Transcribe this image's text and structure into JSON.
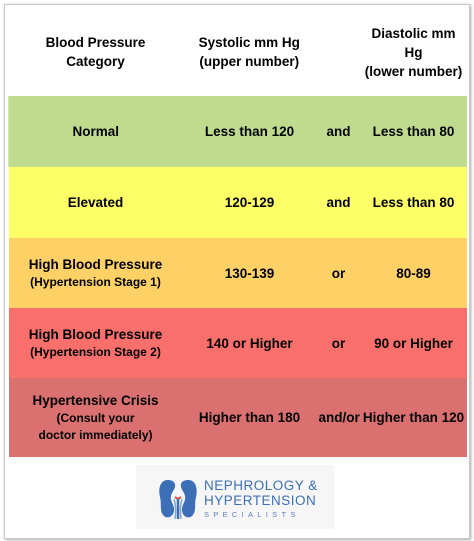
{
  "table": {
    "headers": {
      "category_line1": "Blood Pressure",
      "category_line2": "Category",
      "systolic_line1": "Systolic mm Hg",
      "systolic_line2": "(upper number)",
      "connector": "",
      "diastolic_line1": "Diastolic mm Hg",
      "diastolic_line2": "(lower number)"
    },
    "rows": [
      {
        "category": "Normal",
        "systolic": "Less than 120",
        "connector": "and",
        "diastolic": "Less than 80"
      },
      {
        "category": "Elevated",
        "systolic": "120-129",
        "connector": "and",
        "diastolic": "Less than 80"
      },
      {
        "category": "High Blood Pressure",
        "subcategory": "(Hypertension Stage 1)",
        "systolic": "130-139",
        "connector": "or",
        "diastolic": "80-89"
      },
      {
        "category": "High Blood Pressure",
        "subcategory": "(Hypertension Stage 2)",
        "systolic": "140 or Higher",
        "connector": "or",
        "diastolic": "90 or Higher"
      },
      {
        "category": "Hypertensive Crisis",
        "subcategory_line1": "(Consult your",
        "subcategory_line2": "doctor immediately)",
        "systolic": "Higher than 180",
        "connector": "and/or",
        "diastolic": "Higher than 120"
      }
    ]
  },
  "logo": {
    "line1": "NEPHROLOGY &",
    "line2": "HYPERTENSION",
    "line3": "SPECIALISTS",
    "icon": "kidneys-icon"
  },
  "colors": {
    "normal": "#bfdc8e",
    "elevated": "#fefe66",
    "stage1": "#fdd165",
    "stage2": "#f86f6b",
    "crisis": "#da7070",
    "logo_blue": "#3d6fb6"
  }
}
